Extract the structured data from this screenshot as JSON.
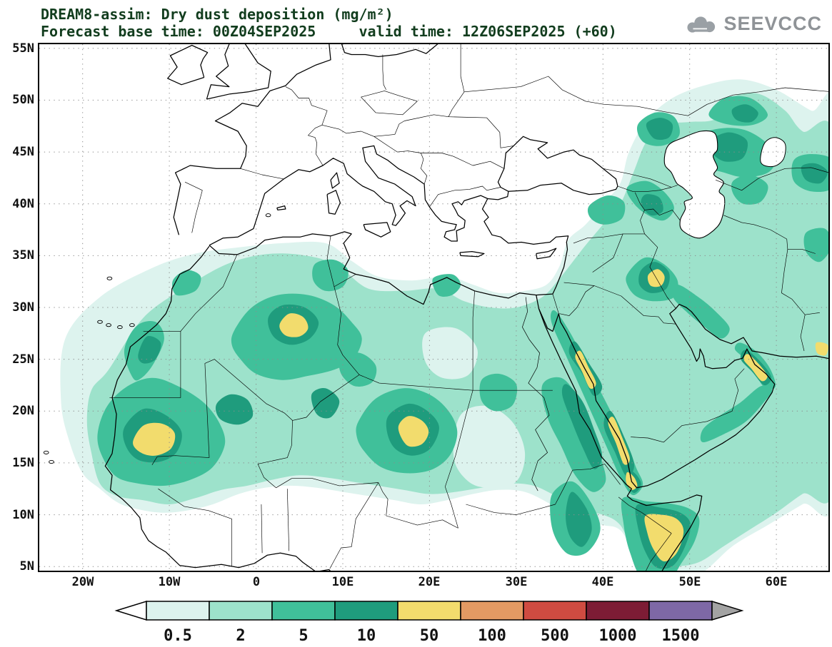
{
  "header": {
    "line1": "DREAM8-assim: Dry dust deposition (mg/m²)",
    "line2": "Forecast base time: 00Z04SEP2025     valid time: 12Z06SEP2025 (+60)"
  },
  "logo": {
    "text": "SEEVCCC"
  },
  "chart_data": {
    "type": "heatmap",
    "variant": "filled-contour-geographic-forecast-map",
    "title": "DREAM8-assim: Dry dust deposition (mg/m²)",
    "model": "DREAM8-assim",
    "variable": "Dry dust deposition",
    "units": "mg/m²",
    "forecast_base_time": "00Z04SEP2025",
    "valid_time": "12Z06SEP2025",
    "lead": "+60",
    "x_axis": {
      "type": "longitude",
      "tick_labels": [
        "20W",
        "10W",
        "0",
        "10E",
        "20E",
        "30E",
        "40E",
        "50E",
        "60E"
      ],
      "tick_values": [
        -20,
        -10,
        0,
        10,
        20,
        30,
        40,
        50,
        60
      ]
    },
    "y_axis": {
      "type": "latitude",
      "tick_labels": [
        "55N",
        "50N",
        "45N",
        "40N",
        "35N",
        "30N",
        "25N",
        "20N",
        "15N",
        "10N",
        "5N"
      ],
      "tick_values": [
        55,
        50,
        45,
        40,
        35,
        30,
        25,
        20,
        15,
        10,
        5
      ]
    },
    "map_domain": {
      "lon_min": -25,
      "lon_max": 66,
      "lat_min": 4.6,
      "lat_max": 55.4
    },
    "grid": "dotted",
    "legend_position": "bottom",
    "colorbar": {
      "levels": [
        0.5,
        2,
        5,
        10,
        50,
        100,
        500,
        1000,
        1500
      ],
      "labels": [
        "0.5",
        "2",
        "5",
        "10",
        "50",
        "100",
        "500",
        "1000",
        "1500"
      ],
      "colors": [
        "#ddf3ee",
        "#9de2cb",
        "#40c09a",
        "#1f9c7d",
        "#f2dc6d",
        "#e39a63",
        "#cf4b41",
        "#7d1c35",
        "#7e68a6"
      ],
      "under_color": "#ffffff",
      "over_color": "#a3a3a3"
    },
    "levels_visible_on_map": [
      0.5,
      2,
      5,
      10,
      50
    ]
  }
}
